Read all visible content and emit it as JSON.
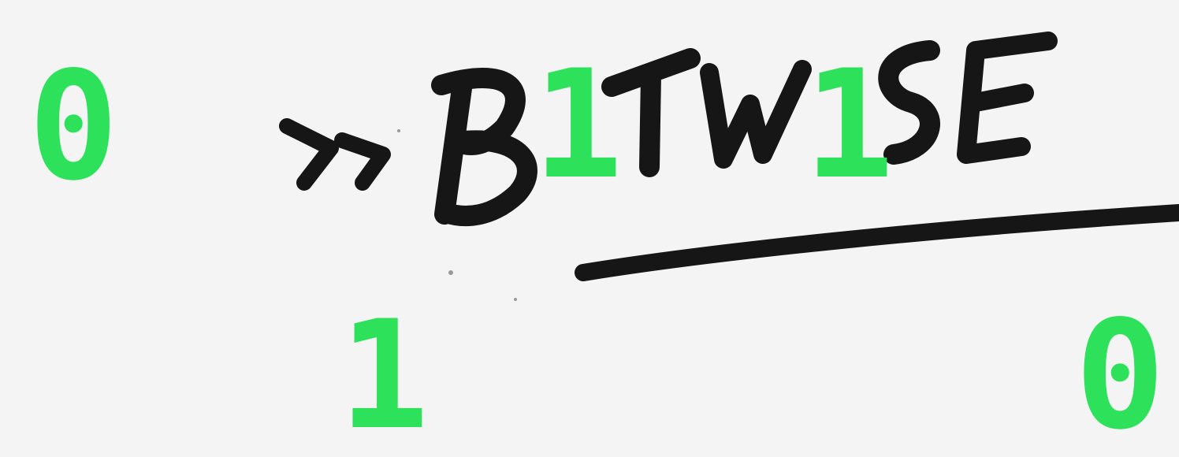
{
  "logo": {
    "text": "»B1TW1SE",
    "ink_color": "#161616"
  },
  "digits": {
    "top_left": "0",
    "bottom_left": "1",
    "bottom_right": "0",
    "logo_one_a": "1",
    "logo_one_b": "1"
  },
  "colors": {
    "background": "#f4f4f4",
    "accent_green": "#2de25a",
    "ink": "#161616"
  }
}
